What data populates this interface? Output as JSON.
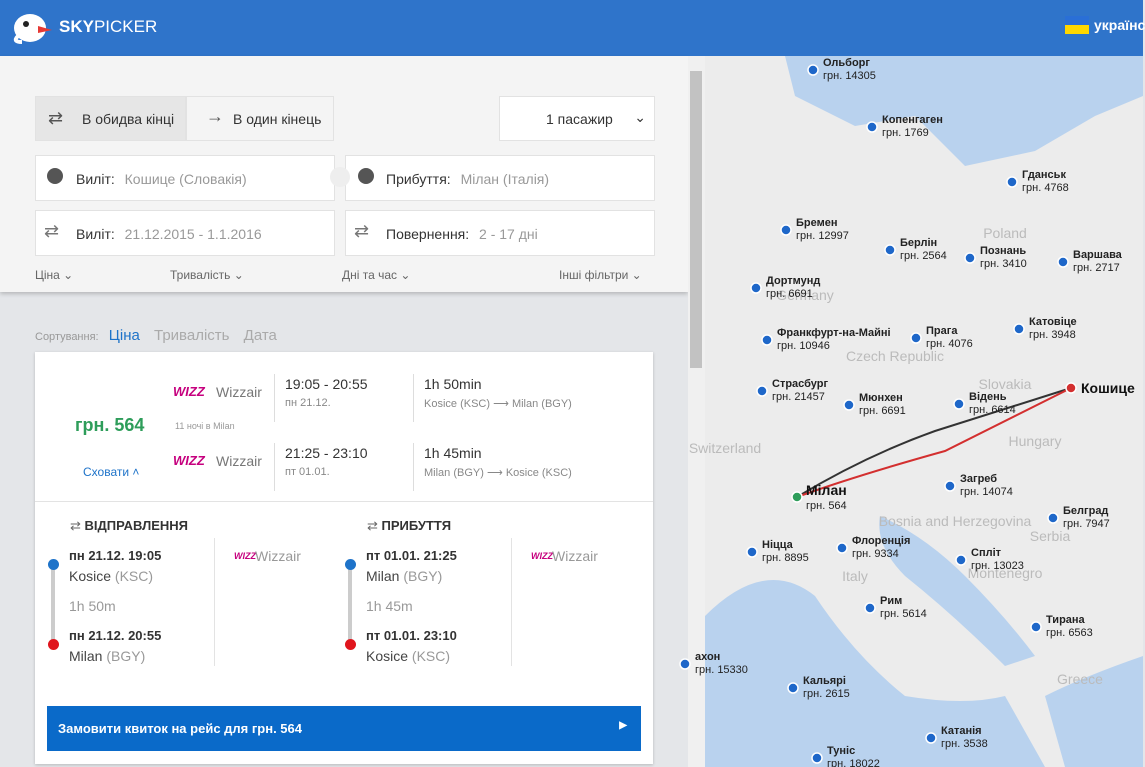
{
  "header": {
    "brand_bold": "SKY",
    "brand_light": "PICKER",
    "language": "українс"
  },
  "search": {
    "round_trip": "В обидва кінці",
    "one_way": "В один кінець",
    "passengers": "1 пасажир",
    "from_label": "Виліт:",
    "from_value": "Кошице (Словакія)",
    "to_label": "Прибуття:",
    "to_value": "Мілан (Італія)",
    "depart_label": "Виліт:",
    "depart_value": "21.12.2015 - 1.1.2016",
    "return_label": "Повернення:",
    "return_value": "2 - 17 дні",
    "filters": [
      "Ціна",
      "Тривалість",
      "Дні та час",
      "Інші фільтри"
    ]
  },
  "sorting": {
    "label": "Сортування:",
    "options": [
      "Ціна",
      "Тривалість",
      "Дата"
    ]
  },
  "result": {
    "price": "грн. 564",
    "nights": "11 ночі в Milan",
    "hide": "Сховати",
    "legs": [
      {
        "logo": "WIZZ",
        "airline": "Wizzair",
        "time": "19:05 - 20:55",
        "date": "пн 21.12.",
        "duration": "1h 50min",
        "from": "Kosice (KSC)",
        "to": "Milan (BGY)"
      },
      {
        "logo": "WIZZ",
        "airline": "Wizzair",
        "time": "21:25 - 23:10",
        "date": "пт 01.01.",
        "duration": "1h 45min",
        "from": "Milan (BGY)",
        "to": "Kosice (KSC)"
      }
    ],
    "details": [
      {
        "heading": "ВІДПРАВЛЕННЯ",
        "dep_time": "пн 21.12. 19:05",
        "dep_city": "Kosice",
        "dep_code": "(KSC)",
        "duration": "1h 50m",
        "arr_time": "пн 21.12. 20:55",
        "arr_city": "Milan",
        "arr_code": "(BGY)",
        "logo": "WIZZ",
        "airline": "Wizzair"
      },
      {
        "heading": "ПРИБУТТЯ",
        "dep_time": "пт 01.01. 21:25",
        "dep_city": "Milan",
        "dep_code": "(BGY)",
        "duration": "1h 45m",
        "arr_time": "пт 01.01. 23:10",
        "arr_city": "Kosice",
        "arr_code": "(KSC)",
        "logo": "WIZZ",
        "airline": "Wizzair"
      }
    ],
    "book": "Замовити квиток на рейс для грн. 564"
  },
  "map": {
    "origin": "Кошице",
    "destination": "Мілан",
    "destination_price": "грн. 564",
    "countries": [
      "Germany",
      "Poland",
      "Czech Republic",
      "Slovakia",
      "Hungary",
      "Italy",
      "Serbia",
      "Switzerland",
      "Bosnia and Herzegovina",
      "Montenegro",
      "Greece"
    ],
    "cities": [
      {
        "name": "Ольборг",
        "price": "грн. 14305"
      },
      {
        "name": "Копенгаген",
        "price": "грн. 1769"
      },
      {
        "name": "Гданськ",
        "price": "грн. 4768"
      },
      {
        "name": "Бремен",
        "price": "грн. 12997"
      },
      {
        "name": "Берлін",
        "price": "грн. 2564"
      },
      {
        "name": "Познань",
        "price": "грн. 3410"
      },
      {
        "name": "Варшава",
        "price": "грн. 2717"
      },
      {
        "name": "Дортмунд",
        "price": "грн. 6691"
      },
      {
        "name": "Франкфурт-на-Майні",
        "price": "грн. 10946"
      },
      {
        "name": "Прага",
        "price": "грн. 4076"
      },
      {
        "name": "Катовіце",
        "price": "грн. 3948"
      },
      {
        "name": "Страсбург",
        "price": "грн. 21457"
      },
      {
        "name": "Мюнхен",
        "price": "грн. 6691"
      },
      {
        "name": "Відень",
        "price": "грн. 6614"
      },
      {
        "name": "Загреб",
        "price": "грн. 14074"
      },
      {
        "name": "Белград",
        "price": "грн. 7947"
      },
      {
        "name": "Ніцца",
        "price": "грн. 8895"
      },
      {
        "name": "Флоренція",
        "price": "грн. 9334"
      },
      {
        "name": "Спліт",
        "price": "грн. 13023"
      },
      {
        "name": "Рим",
        "price": "грн. 5614"
      },
      {
        "name": "Тирана",
        "price": "грн. 6563"
      },
      {
        "name": "Кальярі",
        "price": "грн. 2615"
      },
      {
        "name": "Катанія",
        "price": "грн. 3538"
      },
      {
        "name": "Туніс",
        "price": "грн. 18022"
      },
      {
        "name": "ахон",
        "price": "грн. 15330"
      }
    ]
  }
}
